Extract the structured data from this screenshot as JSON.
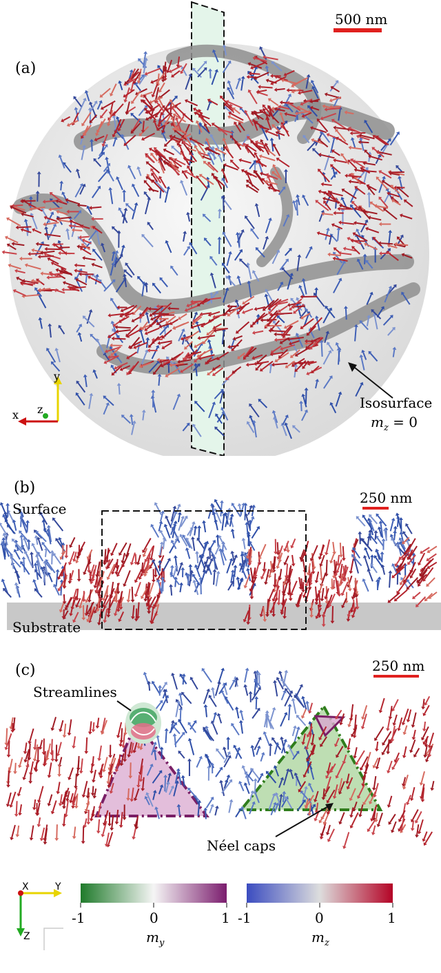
{
  "panel_a": {
    "label": "(a)",
    "scale_bar": "500 nm",
    "annotation_title": "Isosurface",
    "annotation_eq": "m_z = 0",
    "axes": {
      "x": "x",
      "y": "y",
      "z": "z"
    }
  },
  "panel_b": {
    "label": "(b)",
    "scale_bar": "250 nm",
    "surface_label": "Surface",
    "substrate_label": "Substrate"
  },
  "panel_c": {
    "label": "(c)",
    "scale_bar": "250 nm",
    "streamlines_label": "Streamlines",
    "neel_label": "Néel caps",
    "axes": {
      "x": "X",
      "y": "Y",
      "z": "Z"
    }
  },
  "colorbars": {
    "my": {
      "min": "-1",
      "mid": "0",
      "max": "1",
      "label": "m_y",
      "colors": [
        "#1f7a2a",
        "#ffffff",
        "#7b1d6e"
      ]
    },
    "mz": {
      "min": "-1",
      "mid": "0",
      "max": "1",
      "label": "m_z",
      "colors": [
        "#3b4cc0",
        "#dddddd",
        "#b40426"
      ]
    }
  },
  "colors": {
    "red_domain": "#b3242d",
    "blue_domain": "#3f5fb5",
    "isosurface": "#9a9a9a",
    "substrate": "#c8c8c8",
    "neel_purple": "#7a1f66",
    "neel_green": "#2f7d1c",
    "scalebar": "#e0201e"
  }
}
